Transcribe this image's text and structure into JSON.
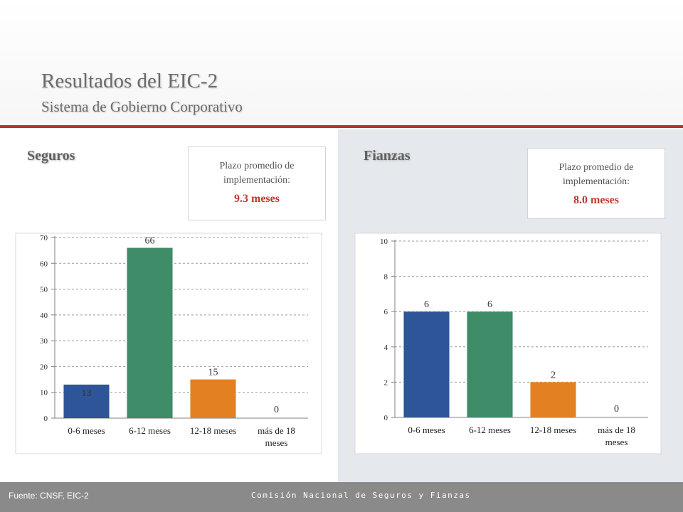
{
  "header": {
    "title": "Resultados del EIC-2",
    "subtitle": "Sistema de Gobierno Corporativo"
  },
  "seguros": {
    "label": "Seguros",
    "info_label": "Plazo promedio de implementación:",
    "info_value": "9.3 meses"
  },
  "fianzas": {
    "label": "Fianzas",
    "info_label": "Plazo promedio de implementación:",
    "info_value": "8.0 meses"
  },
  "footer": {
    "source": "Fuente: CNSF, EIC-2",
    "organization": "Comisión Nacional de Seguros y Fianzas"
  },
  "colors": {
    "bar_colors": [
      "#2e5597",
      "#3e8c68",
      "#e38122",
      "#4a7ab8"
    ],
    "accent": "#b5371f",
    "value_highlight": "#c0392b"
  },
  "chart_data": [
    {
      "type": "bar",
      "categories": [
        "0-6 meses",
        "6-12 meses",
        "12-18 meses",
        "más de 18 meses"
      ],
      "values": [
        13,
        66,
        15,
        0
      ],
      "ylim": [
        0,
        70
      ],
      "yticks": [
        0,
        10,
        20,
        30,
        40,
        50,
        60,
        70
      ],
      "grid": true,
      "data_labels": true
    },
    {
      "type": "bar",
      "categories": [
        "0-6 meses",
        "6-12 meses",
        "12-18 meses",
        "más de 18 meses"
      ],
      "values": [
        6,
        6,
        2,
        0
      ],
      "ylim": [
        0,
        10
      ],
      "yticks": [
        0,
        2,
        4,
        6,
        8,
        10
      ],
      "grid": true,
      "data_labels": true
    }
  ]
}
